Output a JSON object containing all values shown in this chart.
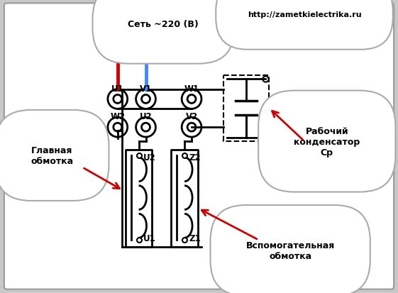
{
  "bg_color": "#c8c8c8",
  "inner_bg": "#ffffff",
  "label_glavnaya": "Главная\nобмотка",
  "label_vspom": "Вспомогательная\nобмотка",
  "label_rabochiy": "Рабочий\nконденсатор\nСр",
  "label_set": "Сеть ~220 (В)",
  "label_url": "http://zametkielectrika.ru",
  "terminal_labels_top": [
    "W2",
    "U2",
    "V2"
  ],
  "terminal_labels_bot": [
    "U1",
    "V1",
    "W1"
  ],
  "coil_label_left": [
    "U1",
    "U2"
  ],
  "coil_label_right": [
    "Z1",
    "Z2"
  ],
  "red_wire": "#cc0000",
  "blue_wire": "#4488ff",
  "arrow_color": "#cc0000"
}
